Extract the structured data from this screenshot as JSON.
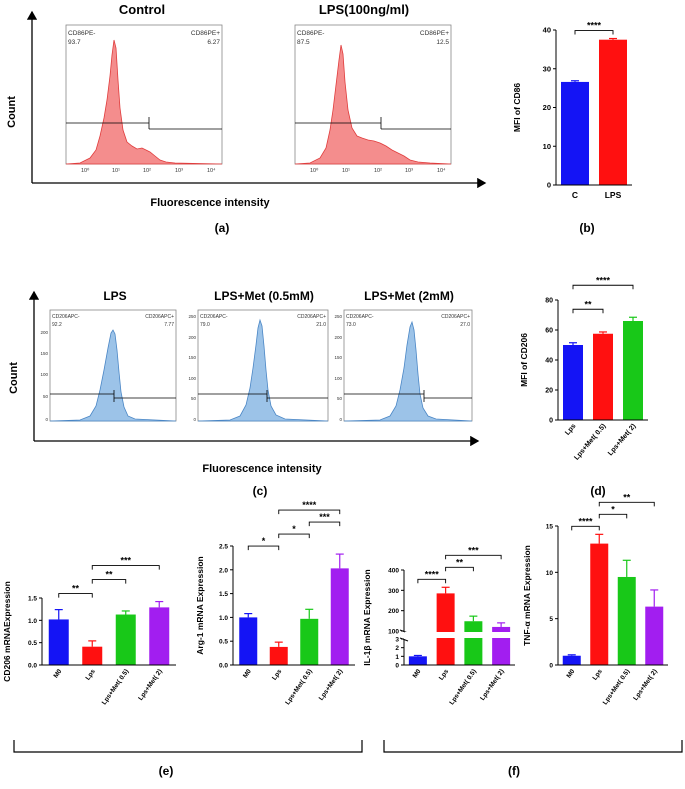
{
  "colors": {
    "flow_red_fill": "#f48d8d",
    "flow_red_line": "#e03c3c",
    "flow_blue_fill": "#9cc3e8",
    "flow_blue_line": "#4a86c5",
    "bar_blue": "#1414f5",
    "bar_red": "#ff1010",
    "bar_green": "#18c818",
    "bar_purple": "#a21ef0",
    "axis": "#000000"
  },
  "panels": {
    "a": {
      "label": "(a)",
      "y_axis_label": "Count",
      "x_axis_label": "Fluorescence intensity",
      "histograms": [
        {
          "title": "Control",
          "neg_gate_label": "CD86PE-",
          "neg_value": "93.7",
          "pos_gate_label": "CD86PE+",
          "pos_value": "6.27",
          "tick_labels": [
            "10⁰",
            "10¹",
            "10²",
            "10³",
            "10⁴"
          ]
        },
        {
          "title": "LPS(100ng/ml)",
          "neg_gate_label": "CD86PE-",
          "neg_value": "87.5",
          "pos_gate_label": "CD86PE+",
          "pos_value": "12.5",
          "tick_labels": [
            "10⁰",
            "10¹",
            "10²",
            "10³",
            "10⁴"
          ]
        }
      ]
    },
    "b": {
      "label": "(b)"
    },
    "c": {
      "label": "(c)",
      "y_axis_label": "Count",
      "x_axis_label": "Fluorescence intensity",
      "histograms": [
        {
          "title": "LPS",
          "neg_gate_label": "CD206APC-",
          "neg_value": "92.2",
          "pos_gate_label": "CD206APC+",
          "pos_value": "7.77",
          "y_ticks": [
            "200",
            "150",
            "100",
            "50",
            "0"
          ]
        },
        {
          "title": "LPS+Met (0.5mM)",
          "neg_gate_label": "CD206APC-",
          "neg_value": "79.0",
          "pos_gate_label": "CD206APC+",
          "pos_value": "21.0",
          "y_ticks": [
            "250",
            "200",
            "150",
            "100",
            "50",
            "0"
          ]
        },
        {
          "title": "LPS+Met (2mM)",
          "neg_gate_label": "CD206APC-",
          "neg_value": "73.0",
          "pos_gate_label": "CD206APC+",
          "pos_value": "27.0",
          "y_ticks": [
            "250",
            "200",
            "150",
            "100",
            "50",
            "0"
          ]
        }
      ]
    },
    "d": {
      "label": "(d)"
    },
    "e": {
      "label": "(e)"
    },
    "f": {
      "label": "(f)"
    }
  },
  "chart_data": [
    {
      "id": "b",
      "type": "bar",
      "title": "",
      "xlabel": "",
      "ylabel": "MFI of CD86",
      "categories": [
        "C",
        "LPS"
      ],
      "values": [
        26.6,
        37.5
      ],
      "errors": [
        0.3,
        0.3
      ],
      "ylim": [
        0,
        40
      ],
      "yticks": [
        0,
        10,
        20,
        30,
        40
      ],
      "significance": [
        {
          "from": 0,
          "to": 1,
          "label": "****"
        }
      ]
    },
    {
      "id": "d",
      "type": "bar",
      "title": "",
      "xlabel": "",
      "ylabel": "MFI of CD206",
      "categories": [
        "Lps",
        "Lps+Met( 0.5)",
        "Lps+Met( 2)"
      ],
      "values": [
        50.0,
        57.5,
        66.0
      ],
      "errors": [
        1.5,
        1.2,
        2.5
      ],
      "ylim": [
        0,
        80
      ],
      "yticks": [
        0,
        20,
        40,
        60,
        80
      ],
      "significance": [
        {
          "from": 0,
          "to": 1,
          "label": "**"
        },
        {
          "from": 0,
          "to": 2,
          "label": "****"
        }
      ]
    },
    {
      "id": "e1",
      "type": "bar",
      "title": "",
      "xlabel": "",
      "ylabel": "CD206 mRNAExpression",
      "categories": [
        "M0",
        "Lps",
        "Lps+Met( 0.5)",
        "Lps+Met( 2)"
      ],
      "values": [
        1.02,
        0.41,
        1.13,
        1.29
      ],
      "errors": [
        0.22,
        0.13,
        0.08,
        0.13
      ],
      "ylim": [
        0,
        1.5
      ],
      "yticks": [
        0.0,
        0.5,
        1.0,
        1.5
      ],
      "significance": [
        {
          "from": 0,
          "to": 1,
          "label": "**"
        },
        {
          "from": 1,
          "to": 2,
          "label": "**"
        },
        {
          "from": 1,
          "to": 3,
          "label": "***"
        }
      ]
    },
    {
      "id": "e2",
      "type": "bar",
      "title": "",
      "xlabel": "",
      "ylabel": "Arg-1 mRNA Expression",
      "categories": [
        "M0",
        "Lps",
        "Lps+Met( 0.5)",
        "Lps+Met( 2)"
      ],
      "values": [
        1.0,
        0.38,
        0.97,
        2.03
      ],
      "errors": [
        0.08,
        0.1,
        0.2,
        0.3
      ],
      "ylim": [
        0,
        2.5
      ],
      "yticks": [
        0.0,
        0.5,
        1.0,
        1.5,
        2.0,
        2.5
      ],
      "significance": [
        {
          "from": 0,
          "to": 1,
          "label": "*"
        },
        {
          "from": 1,
          "to": 2,
          "label": "*"
        },
        {
          "from": 2,
          "to": 3,
          "label": "***"
        },
        {
          "from": 1,
          "to": 3,
          "label": "****"
        }
      ]
    },
    {
      "id": "f1",
      "type": "bar",
      "title": "",
      "xlabel": "",
      "ylabel": "IL-1β mRNA Expression",
      "categories": [
        "M0",
        "Lps",
        "Lps+Met( 0.5)",
        "Lps+Met( 2)"
      ],
      "values": [
        1.0,
        285,
        148,
        120
      ],
      "errors": [
        0.1,
        30,
        25,
        20
      ],
      "broken_axis": {
        "lower": [
          0,
          3
        ],
        "upper": [
          100,
          400
        ]
      },
      "yticks_lower": [
        0,
        1,
        2,
        3
      ],
      "yticks_upper": [
        100,
        200,
        300,
        400
      ],
      "significance": [
        {
          "from": 0,
          "to": 1,
          "label": "****"
        },
        {
          "from": 1,
          "to": 2,
          "label": "**"
        },
        {
          "from": 1,
          "to": 3,
          "label": "***"
        }
      ]
    },
    {
      "id": "f2",
      "type": "bar",
      "title": "",
      "xlabel": "",
      "ylabel": "TNF-α mRNA Expression",
      "categories": [
        "M0",
        "Lps",
        "Lps+Met( 0.5)",
        "Lps+Met( 2)"
      ],
      "values": [
        1.0,
        13.1,
        9.5,
        6.3
      ],
      "errors": [
        0.1,
        1.0,
        1.8,
        1.8
      ],
      "ylim": [
        0,
        15
      ],
      "yticks": [
        0,
        5,
        10,
        15
      ],
      "significance": [
        {
          "from": 0,
          "to": 1,
          "label": "****"
        },
        {
          "from": 1,
          "to": 2,
          "label": "*"
        },
        {
          "from": 1,
          "to": 3,
          "label": "**"
        }
      ]
    }
  ]
}
